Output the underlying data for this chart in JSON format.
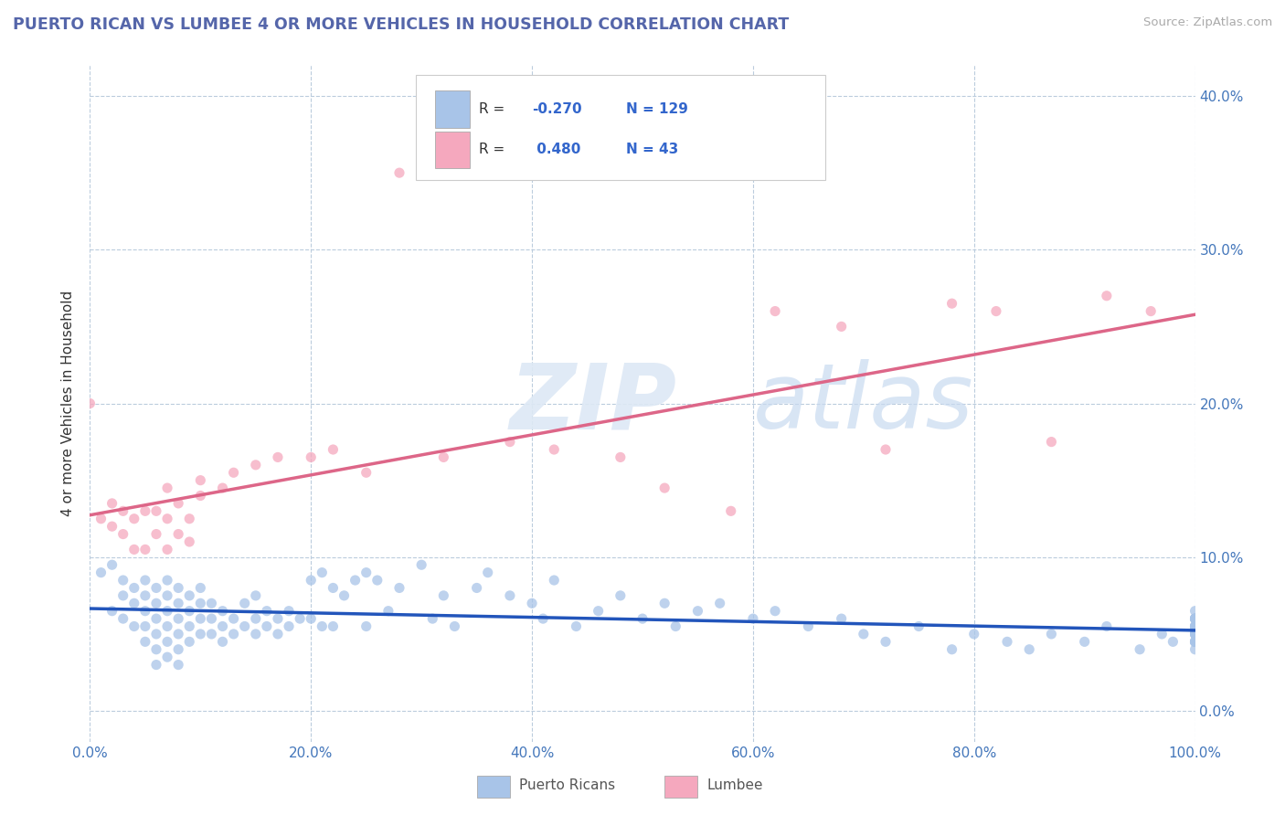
{
  "title": "PUERTO RICAN VS LUMBEE 4 OR MORE VEHICLES IN HOUSEHOLD CORRELATION CHART",
  "source": "Source: ZipAtlas.com",
  "xlabel_ticks": [
    "0.0%",
    "20.0%",
    "40.0%",
    "60.0%",
    "80.0%",
    "100.0%"
  ],
  "ylabel_ticks": [
    "0.0%",
    "10.0%",
    "20.0%",
    "30.0%",
    "40.0%"
  ],
  "ylabel_label": "4 or more Vehicles in Household",
  "legend_labels": [
    "Puerto Ricans",
    "Lumbee"
  ],
  "r_blue": -0.27,
  "n_blue": 129,
  "r_pink": 0.48,
  "n_pink": 43,
  "blue_color": "#a8c4e8",
  "pink_color": "#f5a8be",
  "blue_line_color": "#2255bb",
  "pink_line_color": "#dd6688",
  "watermark_zip": "ZIP",
  "watermark_atlas": "atlas",
  "xlim": [
    0.0,
    1.0
  ],
  "ylim": [
    -0.02,
    0.42
  ],
  "grid_color": "#bbccdd",
  "blue_scatter_x": [
    0.01,
    0.02,
    0.02,
    0.03,
    0.03,
    0.03,
    0.04,
    0.04,
    0.04,
    0.05,
    0.05,
    0.05,
    0.05,
    0.05,
    0.06,
    0.06,
    0.06,
    0.06,
    0.06,
    0.06,
    0.07,
    0.07,
    0.07,
    0.07,
    0.07,
    0.07,
    0.08,
    0.08,
    0.08,
    0.08,
    0.08,
    0.08,
    0.09,
    0.09,
    0.09,
    0.09,
    0.1,
    0.1,
    0.1,
    0.1,
    0.11,
    0.11,
    0.11,
    0.12,
    0.12,
    0.12,
    0.13,
    0.13,
    0.14,
    0.14,
    0.15,
    0.15,
    0.15,
    0.16,
    0.16,
    0.17,
    0.17,
    0.18,
    0.18,
    0.19,
    0.2,
    0.2,
    0.21,
    0.21,
    0.22,
    0.22,
    0.23,
    0.24,
    0.25,
    0.25,
    0.26,
    0.27,
    0.28,
    0.3,
    0.31,
    0.32,
    0.33,
    0.35,
    0.36,
    0.38,
    0.4,
    0.41,
    0.42,
    0.44,
    0.46,
    0.48,
    0.5,
    0.52,
    0.53,
    0.55,
    0.57,
    0.6,
    0.62,
    0.65,
    0.68,
    0.7,
    0.72,
    0.75,
    0.78,
    0.8,
    0.83,
    0.85,
    0.87,
    0.9,
    0.92,
    0.95,
    0.97,
    0.98,
    1.0,
    1.0,
    1.0,
    1.0,
    1.0,
    1.0,
    1.0,
    1.0,
    1.0,
    1.0,
    1.0,
    1.0,
    1.0,
    1.0,
    1.0,
    1.0,
    1.0,
    1.0,
    1.0,
    1.0,
    1.0
  ],
  "blue_scatter_y": [
    0.09,
    0.095,
    0.065,
    0.085,
    0.075,
    0.06,
    0.08,
    0.07,
    0.055,
    0.085,
    0.075,
    0.065,
    0.055,
    0.045,
    0.08,
    0.07,
    0.06,
    0.05,
    0.04,
    0.03,
    0.085,
    0.075,
    0.065,
    0.055,
    0.045,
    0.035,
    0.08,
    0.07,
    0.06,
    0.05,
    0.04,
    0.03,
    0.075,
    0.065,
    0.055,
    0.045,
    0.08,
    0.07,
    0.06,
    0.05,
    0.07,
    0.06,
    0.05,
    0.065,
    0.055,
    0.045,
    0.06,
    0.05,
    0.07,
    0.055,
    0.075,
    0.06,
    0.05,
    0.065,
    0.055,
    0.06,
    0.05,
    0.065,
    0.055,
    0.06,
    0.085,
    0.06,
    0.09,
    0.055,
    0.08,
    0.055,
    0.075,
    0.085,
    0.09,
    0.055,
    0.085,
    0.065,
    0.08,
    0.095,
    0.06,
    0.075,
    0.055,
    0.08,
    0.09,
    0.075,
    0.07,
    0.06,
    0.085,
    0.055,
    0.065,
    0.075,
    0.06,
    0.07,
    0.055,
    0.065,
    0.07,
    0.06,
    0.065,
    0.055,
    0.06,
    0.05,
    0.045,
    0.055,
    0.04,
    0.05,
    0.045,
    0.04,
    0.05,
    0.045,
    0.055,
    0.04,
    0.05,
    0.045,
    0.06,
    0.05,
    0.045,
    0.055,
    0.06,
    0.05,
    0.045,
    0.055,
    0.04,
    0.065,
    0.05,
    0.045,
    0.055,
    0.06,
    0.05,
    0.045,
    0.055,
    0.06,
    0.045,
    0.055,
    0.06
  ],
  "pink_scatter_x": [
    0.0,
    0.01,
    0.02,
    0.02,
    0.03,
    0.03,
    0.04,
    0.04,
    0.05,
    0.05,
    0.06,
    0.06,
    0.07,
    0.07,
    0.07,
    0.08,
    0.08,
    0.09,
    0.09,
    0.1,
    0.1,
    0.12,
    0.13,
    0.15,
    0.17,
    0.2,
    0.22,
    0.25,
    0.28,
    0.32,
    0.38,
    0.42,
    0.48,
    0.52,
    0.58,
    0.62,
    0.68,
    0.72,
    0.78,
    0.82,
    0.87,
    0.92,
    0.96
  ],
  "pink_scatter_y": [
    0.2,
    0.125,
    0.135,
    0.12,
    0.13,
    0.115,
    0.125,
    0.105,
    0.13,
    0.105,
    0.13,
    0.115,
    0.145,
    0.125,
    0.105,
    0.135,
    0.115,
    0.125,
    0.11,
    0.14,
    0.15,
    0.145,
    0.155,
    0.16,
    0.165,
    0.165,
    0.17,
    0.155,
    0.35,
    0.165,
    0.175,
    0.17,
    0.165,
    0.145,
    0.13,
    0.26,
    0.25,
    0.17,
    0.265,
    0.26,
    0.175,
    0.27,
    0.26
  ]
}
